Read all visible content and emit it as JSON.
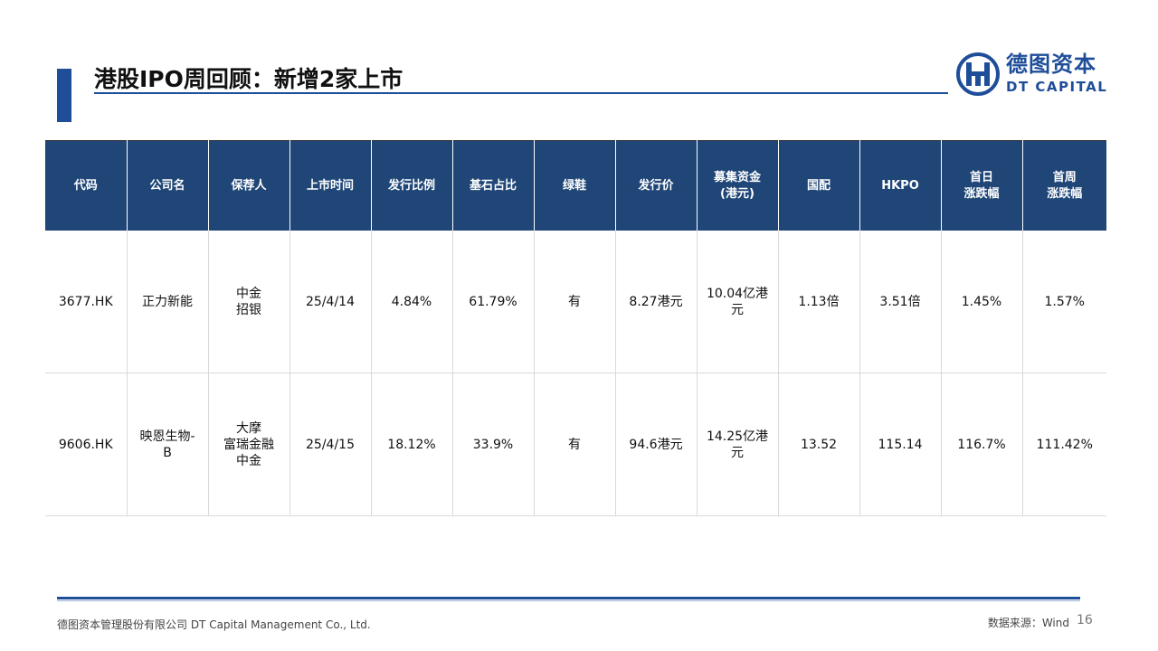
{
  "header": {
    "title": "港股IPO周回顾：新增2家上市"
  },
  "logo": {
    "cn": "德图资本",
    "en": "DT CAPITAL",
    "icon": "dt-capital-logo-icon"
  },
  "colors": {
    "brand_blue": "#1f4e99",
    "header_fill": "#1f4677"
  },
  "table": {
    "headers": [
      "代码",
      "公司名",
      "保荐人",
      "上市时间",
      "发行比例",
      "基石占比",
      "绿鞋",
      "发行价",
      "募集资金\n(港元)",
      "国配",
      "HKPO",
      "首日\n涨跌幅",
      "首周\n涨跌幅"
    ],
    "rows": [
      [
        "3677.HK",
        "正力新能",
        "中金\n招银",
        "25/4/14",
        "4.84%",
        "61.79%",
        "有",
        "8.27港元",
        "10.04亿港\n元",
        "1.13倍",
        "3.51倍",
        "1.45%",
        "1.57%"
      ],
      [
        "9606.HK",
        "映恩生物-\nB",
        "大摩\n富瑞金融\n中金",
        "25/4/15",
        "18.12%",
        "33.9%",
        "有",
        "94.6港元",
        "14.25亿港\n元",
        "13.52",
        "115.14",
        "116.7%",
        "111.42%"
      ]
    ]
  },
  "footer": {
    "company": "德图资本管理股份有限公司 DT Capital Management Co., Ltd.",
    "source": "数据来源：Wind",
    "page_number": "16"
  }
}
